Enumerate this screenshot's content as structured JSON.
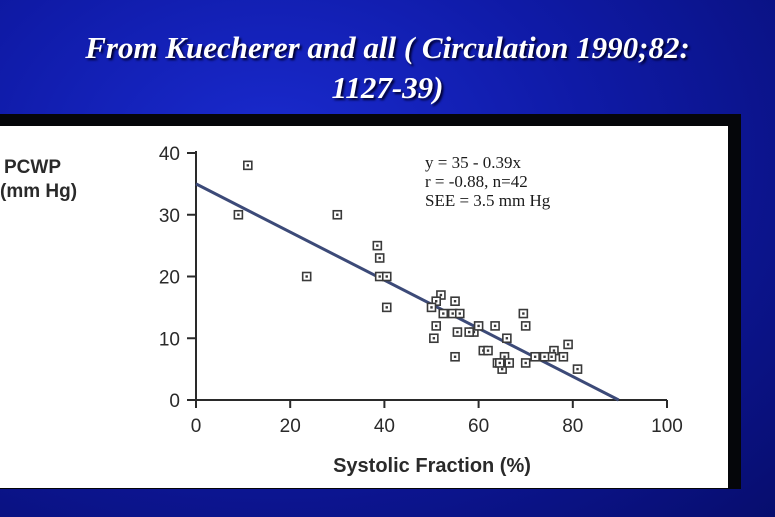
{
  "slide": {
    "title_line1": "From Kuecherer and all ( Circulation 1990;82:",
    "title_line2": "1127-39)"
  },
  "chart_data": {
    "type": "scatter",
    "title": "",
    "xlabel": "Systolic Fraction (%)",
    "ylabel_line1": "PCWP",
    "ylabel_line2": "(mm Hg)",
    "xlim": [
      0,
      100
    ],
    "ylim": [
      0,
      40
    ],
    "x_ticks": [
      0,
      20,
      40,
      60,
      80,
      100
    ],
    "y_ticks": [
      0,
      10,
      20,
      30,
      40
    ],
    "grid": false,
    "annotation": [
      "y = 35 - 0.39x",
      "r = -0.88, n=42",
      "SEE = 3.5 mm Hg"
    ],
    "regression": {
      "intercept": 35,
      "slope": -0.39
    },
    "points": [
      [
        11,
        38
      ],
      [
        9,
        30
      ],
      [
        30,
        30
      ],
      [
        23.5,
        20
      ],
      [
        38.5,
        25
      ],
      [
        39,
        23
      ],
      [
        39,
        20
      ],
      [
        40.5,
        20
      ],
      [
        40.5,
        15
      ],
      [
        52,
        17
      ],
      [
        51,
        16
      ],
      [
        50,
        15
      ],
      [
        50.5,
        10
      ],
      [
        51,
        12
      ],
      [
        55,
        16
      ],
      [
        54.5,
        14
      ],
      [
        56,
        14
      ],
      [
        55.5,
        11
      ],
      [
        55,
        7
      ],
      [
        59,
        11
      ],
      [
        60,
        12
      ],
      [
        61,
        8
      ],
      [
        63.5,
        12
      ],
      [
        62,
        8
      ],
      [
        64,
        6
      ],
      [
        65.5,
        7
      ],
      [
        66,
        10
      ],
      [
        65,
        5
      ],
      [
        66.5,
        6
      ],
      [
        69.5,
        14
      ],
      [
        70,
        12
      ],
      [
        70,
        6
      ],
      [
        72,
        7
      ],
      [
        76,
        8
      ],
      [
        75.5,
        7
      ],
      [
        78,
        7
      ],
      [
        79,
        9
      ],
      [
        81,
        5
      ],
      [
        64.5,
        6
      ],
      [
        58,
        11
      ],
      [
        52.5,
        14
      ],
      [
        74,
        7
      ]
    ],
    "colors": {
      "marker": "#3a3a3a",
      "line": "#3c4a78",
      "axis": "#2a2a2a"
    }
  }
}
